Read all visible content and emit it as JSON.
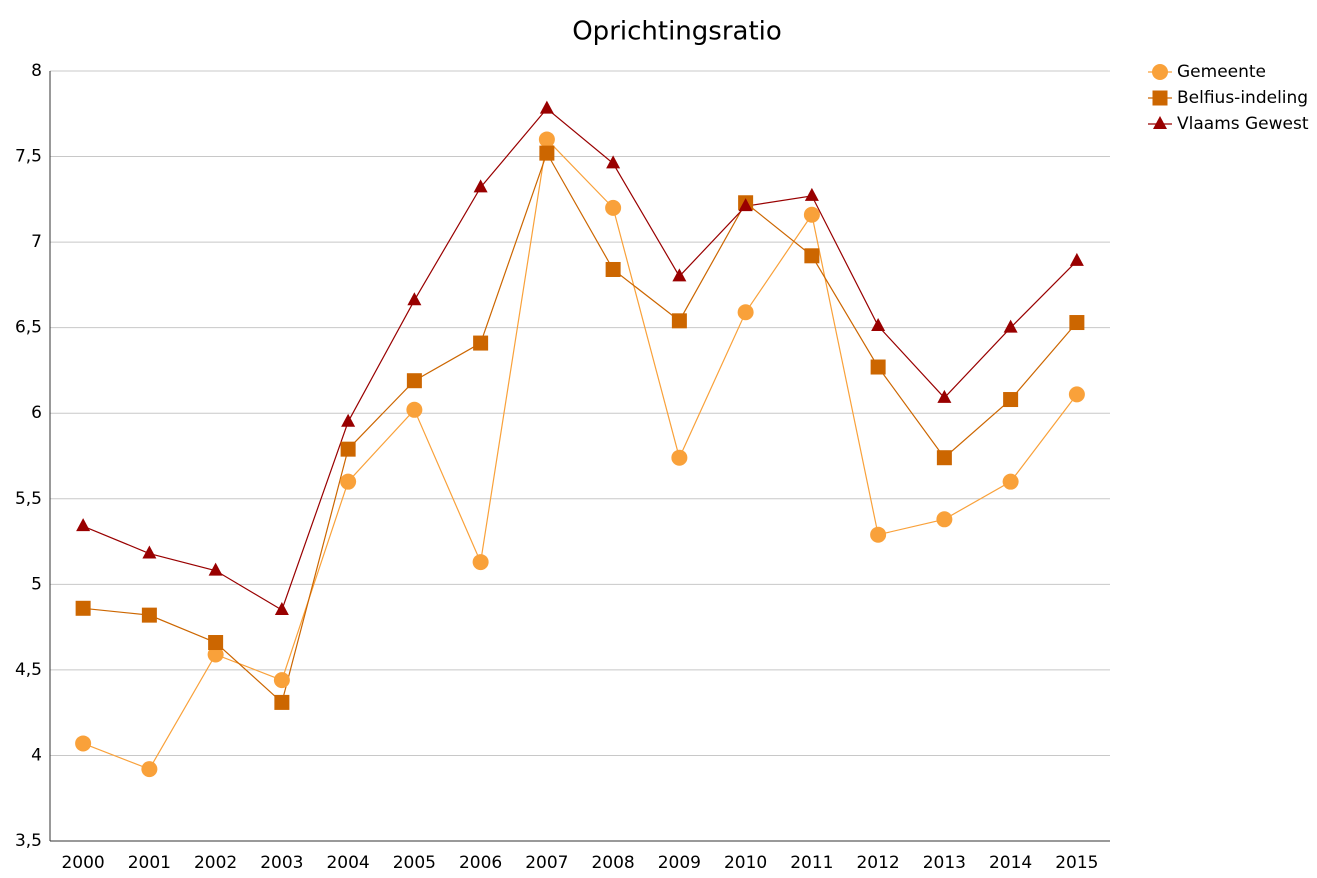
{
  "chart_data": {
    "type": "line",
    "title": "Oprichtingsratio",
    "categories": [
      "2000",
      "2001",
      "2002",
      "2003",
      "2004",
      "2005",
      "2006",
      "2007",
      "2008",
      "2009",
      "2010",
      "2011",
      "2012",
      "2013",
      "2014",
      "2015"
    ],
    "series": [
      {
        "name": "Gemeente",
        "color": "#f9a13a",
        "marker": "circle",
        "values": [
          4.07,
          3.92,
          4.59,
          4.44,
          5.6,
          6.02,
          5.13,
          7.6,
          7.2,
          5.74,
          6.59,
          7.16,
          5.29,
          5.38,
          5.6,
          6.11
        ]
      },
      {
        "name": "Belfius-indeling",
        "color": "#cc6600",
        "marker": "square",
        "values": [
          4.86,
          4.82,
          4.66,
          4.31,
          5.79,
          6.19,
          6.41,
          7.52,
          6.84,
          6.54,
          7.23,
          6.92,
          6.27,
          5.74,
          6.08,
          6.53
        ]
      },
      {
        "name": "Vlaams Gewest",
        "color": "#990000",
        "marker": "triangle",
        "values": [
          5.34,
          5.18,
          5.08,
          4.85,
          5.95,
          6.66,
          7.32,
          7.78,
          7.46,
          6.8,
          7.21,
          7.27,
          6.51,
          6.09,
          6.5,
          6.89
        ]
      }
    ],
    "ylim": [
      3.5,
      8
    ],
    "yticks": [
      {
        "value": 3.5,
        "label": "3,5"
      },
      4,
      {
        "value": 4.5,
        "label": "4,5"
      },
      5,
      {
        "value": 5.5,
        "label": "5,5"
      },
      6,
      {
        "value": 6.5,
        "label": "6,5"
      },
      7,
      {
        "value": 7.5,
        "label": "7,5"
      },
      8
    ],
    "grid": true,
    "legend": "top-right-outside"
  }
}
